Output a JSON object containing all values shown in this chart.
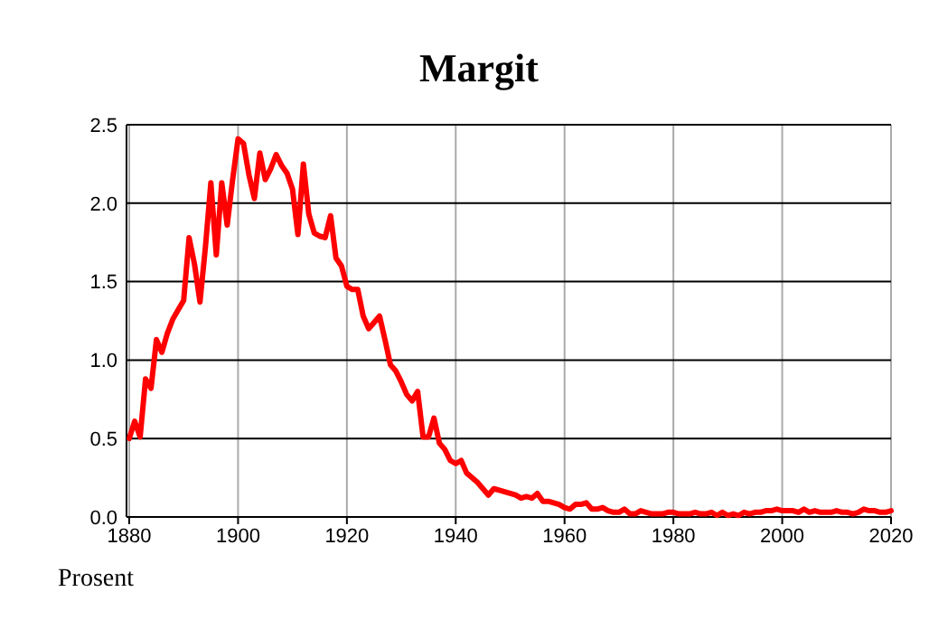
{
  "chart_data": {
    "type": "line",
    "title": "Margit",
    "ylabel": "Prosent",
    "x": [
      1880,
      1881,
      1882,
      1883,
      1884,
      1885,
      1886,
      1887,
      1888,
      1889,
      1890,
      1891,
      1892,
      1893,
      1894,
      1895,
      1896,
      1897,
      1898,
      1899,
      1900,
      1901,
      1902,
      1903,
      1904,
      1905,
      1906,
      1907,
      1908,
      1909,
      1910,
      1911,
      1912,
      1913,
      1914,
      1915,
      1916,
      1917,
      1918,
      1919,
      1920,
      1921,
      1922,
      1923,
      1924,
      1925,
      1926,
      1927,
      1928,
      1929,
      1930,
      1931,
      1932,
      1933,
      1934,
      1935,
      1936,
      1937,
      1938,
      1939,
      1940,
      1941,
      1942,
      1943,
      1944,
      1945,
      1946,
      1947,
      1948,
      1949,
      1950,
      1951,
      1952,
      1953,
      1954,
      1955,
      1956,
      1957,
      1958,
      1959,
      1960,
      1961,
      1962,
      1963,
      1964,
      1965,
      1966,
      1967,
      1968,
      1969,
      1970,
      1971,
      1972,
      1973,
      1974,
      1975,
      1976,
      1977,
      1978,
      1979,
      1980,
      1981,
      1982,
      1983,
      1984,
      1985,
      1986,
      1987,
      1988,
      1989,
      1990,
      1991,
      1992,
      1993,
      1994,
      1995,
      1996,
      1997,
      1998,
      1999,
      2000,
      2001,
      2002,
      2003,
      2004,
      2005,
      2006,
      2007,
      2008,
      2009,
      2010,
      2011,
      2012,
      2013,
      2014,
      2015,
      2016,
      2017,
      2018,
      2019,
      2020
    ],
    "series": [
      {
        "color": "#ff0000",
        "values": [
          0.5,
          0.61,
          0.51,
          0.88,
          0.82,
          1.13,
          1.05,
          1.17,
          1.26,
          1.32,
          1.38,
          1.78,
          1.61,
          1.37,
          1.72,
          2.13,
          1.67,
          2.13,
          1.86,
          2.15,
          2.41,
          2.38,
          2.18,
          2.03,
          2.32,
          2.15,
          2.22,
          2.31,
          2.24,
          2.19,
          2.09,
          1.8,
          2.25,
          1.93,
          1.81,
          1.79,
          1.78,
          1.92,
          1.65,
          1.6,
          1.47,
          1.45,
          1.45,
          1.28,
          1.2,
          1.24,
          1.28,
          1.13,
          0.97,
          0.93,
          0.86,
          0.78,
          0.74,
          0.8,
          0.51,
          0.51,
          0.63,
          0.47,
          0.43,
          0.36,
          0.34,
          0.36,
          0.28,
          0.25,
          0.22,
          0.18,
          0.14,
          0.18,
          0.17,
          0.16,
          0.15,
          0.14,
          0.12,
          0.13,
          0.12,
          0.15,
          0.1,
          0.1,
          0.09,
          0.08,
          0.06,
          0.05,
          0.08,
          0.08,
          0.09,
          0.05,
          0.05,
          0.06,
          0.04,
          0.03,
          0.03,
          0.05,
          0.02,
          0.02,
          0.04,
          0.03,
          0.02,
          0.02,
          0.02,
          0.03,
          0.03,
          0.02,
          0.02,
          0.02,
          0.03,
          0.02,
          0.02,
          0.03,
          0.01,
          0.03,
          0.01,
          0.02,
          0.01,
          0.03,
          0.02,
          0.03,
          0.03,
          0.04,
          0.04,
          0.05,
          0.04,
          0.04,
          0.04,
          0.03,
          0.05,
          0.03,
          0.04,
          0.03,
          0.03,
          0.03,
          0.04,
          0.03,
          0.03,
          0.02,
          0.03,
          0.05,
          0.04,
          0.04,
          0.03,
          0.03,
          0.04
        ]
      }
    ],
    "xlim": [
      1879.5,
      2020
    ],
    "xticks": [
      1880,
      1900,
      1920,
      1940,
      1960,
      1980,
      2000,
      2020
    ],
    "ylim": [
      0,
      2.5
    ],
    "yticks": [
      {
        "value": 0,
        "label": "0.0"
      },
      {
        "value": 0.5,
        "label": "0.5"
      },
      {
        "value": 1,
        "label": "1.0"
      },
      {
        "value": 1.5,
        "label": "1.5"
      },
      {
        "value": 2,
        "label": "2.0"
      },
      {
        "value": 2.5,
        "label": "2.5"
      }
    ],
    "grid": true,
    "marker": "none",
    "line_style": "solid"
  }
}
